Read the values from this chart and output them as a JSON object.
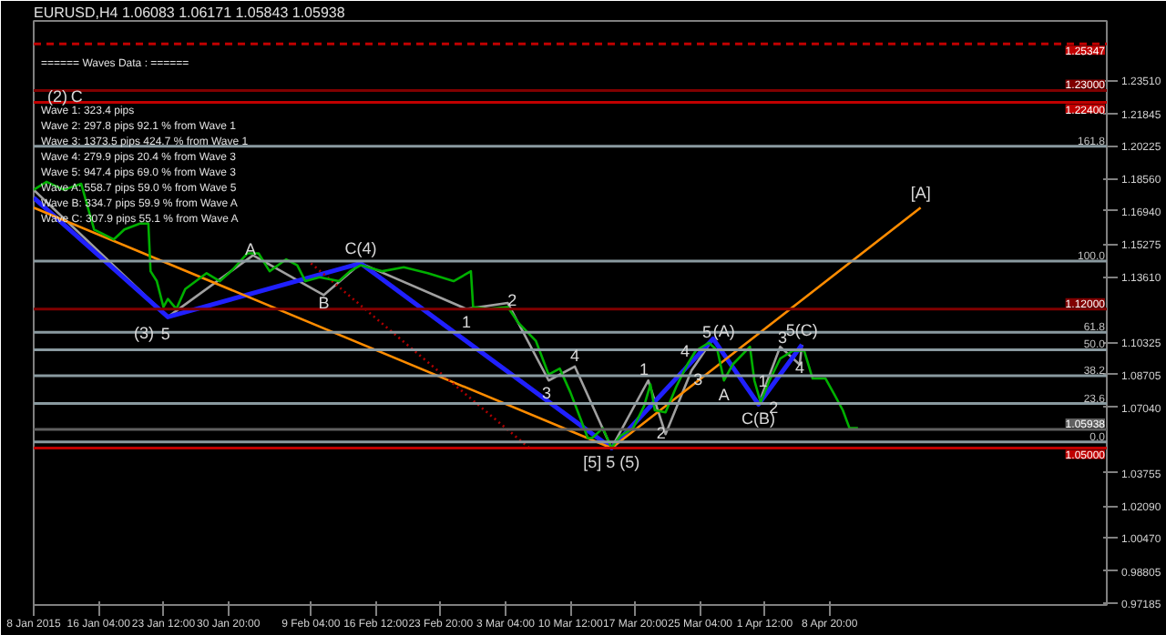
{
  "chart_data": {
    "type": "line",
    "title": "EURUSD,H4 1.06083 1.06171 1.05843 1.05938",
    "xlim": [
      "2015-01-08T20:00",
      "2015-05-10T03:00"
    ],
    "ylim": [
      0.971,
      1.265
    ],
    "xticks": [
      {
        "value": "2015-01-08T20:00",
        "label": "8 Jan 2015"
      },
      {
        "value": "2015-01-16T04:00",
        "label": "16 Jan 04:00"
      },
      {
        "value": "2015-01-23T12:00",
        "label": "23 Jan 12:00"
      },
      {
        "value": "2015-01-30T20:00",
        "label": "30 Jan 20:00"
      },
      {
        "value": "2015-02-09T04:00",
        "label": "9 Feb 04:00"
      },
      {
        "value": "2015-02-16T12:00",
        "label": "16 Feb 12:00"
      },
      {
        "value": "2015-02-23T20:00",
        "label": "23 Feb 20:00"
      },
      {
        "value": "2015-03-03T04:00",
        "label": "3 Mar 04:00"
      },
      {
        "value": "2015-03-10T12:00",
        "label": "10 Mar 12:00"
      },
      {
        "value": "2015-03-17T20:00",
        "label": "17 Mar 20:00"
      },
      {
        "value": "2015-03-25T04:00",
        "label": "25 Mar 04:00"
      },
      {
        "value": "2015-04-01T12:00",
        "label": "1 Apr 12:00"
      },
      {
        "value": "2015-04-08T20:00",
        "label": "8 Apr 20:00"
      }
    ],
    "yticks": [
      {
        "value": 1.2351,
        "label": "1.23510"
      },
      {
        "value": 1.21845,
        "label": "1.21845"
      },
      {
        "value": 1.20225,
        "label": "1.20225"
      },
      {
        "value": 1.1856,
        "label": "1.18560"
      },
      {
        "value": 1.1694,
        "label": "1.16940"
      },
      {
        "value": 1.15275,
        "label": "1.15275"
      },
      {
        "value": 1.1361,
        "label": "1.13610"
      },
      {
        "value": 1.10325,
        "label": "1.10325"
      },
      {
        "value": 1.08705,
        "label": "1.08705"
      },
      {
        "value": 1.0704,
        "label": "1.07040"
      },
      {
        "value": 1.03755,
        "label": "1.03755"
      },
      {
        "value": 1.0209,
        "label": "1.02090"
      },
      {
        "value": 1.0047,
        "label": "1.00470"
      },
      {
        "value": 0.98805,
        "label": "0.98805"
      },
      {
        "value": 0.97185,
        "label": "0.97185"
      }
    ],
    "marker": "none",
    "line_style": "solid",
    "series": [
      {
        "color": "#00b000",
        "x": [
          "2015-01-08T20:00",
          "2015-01-10T07:00",
          "2015-01-12T06:00",
          "2015-01-14T05:00",
          "2015-01-14T23:00",
          "2015-01-15T16:00",
          "2015-01-17T21:00",
          "2015-01-19T02:00",
          "2015-01-20T20:00",
          "2015-01-21T19:00",
          "2015-01-22T01:00",
          "2015-01-22T18:00",
          "2015-01-23T12:00",
          "2015-01-24T00:00",
          "2015-01-24T23:00",
          "2015-01-25T23:00",
          "2015-01-27T04:00",
          "2015-01-28T09:00",
          "2015-01-29T21:00",
          "2015-01-31T03:30",
          "2015-02-02T00:00",
          "2015-02-03T06:00",
          "2015-02-04T12:00",
          "2015-02-06T09:00",
          "2015-02-07T15:00",
          "2015-02-08T13:00",
          "2015-02-10T03:30",
          "2015-02-12T08:00",
          "2015-02-13T14:00",
          "2015-02-14T19:00",
          "2015-02-17T06:00",
          "2015-02-19T16:00",
          "2015-02-22T09:00",
          "2015-02-25T07:00",
          "2015-02-27T06:00",
          "2015-02-27T12:00",
          "2015-03-01T05:00",
          "2015-03-03T10:00",
          "2015-03-04T15:00",
          "2015-03-06T14:00",
          "2015-03-08T01:00",
          "2015-03-09T07:00",
          "2015-03-10T12:00",
          "2015-03-11T17:00",
          "2015-03-12T11:00",
          "2015-03-12T23:00",
          "2015-03-14T04:00",
          "2015-03-15T03:30",
          "2015-03-16T03:00",
          "2015-03-17T14:00",
          "2015-03-18T19:30",
          "2015-03-19T13:00",
          "2015-03-20T01:00",
          "2015-03-21T06:00",
          "2015-03-22T11:30",
          "2015-03-23T17:00",
          "2015-03-24T16:00",
          "2015-03-26T03:30",
          "2015-03-27T03:00",
          "2015-03-27T20:30",
          "2015-03-28T20:00",
          "2015-03-30T19:00",
          "2015-03-31T07:00",
          "2015-04-01T00:00",
          "2015-04-02T00:00",
          "2015-04-03T05:00",
          "2015-04-04T16:00",
          "2015-04-05T22:00",
          "2015-04-06T21:00",
          "2015-04-08T08:00",
          "2015-04-09T08:00",
          "2015-04-10T07:00",
          "2015-04-11T01:00",
          "2015-04-12T00:00"
        ],
        "values": [
          1.18,
          1.184,
          1.18,
          1.183,
          1.171,
          1.16,
          1.155,
          1.16,
          1.163,
          1.163,
          1.139,
          1.134,
          1.121,
          1.125,
          1.12,
          1.13,
          1.134,
          1.138,
          1.134,
          1.139,
          1.148,
          1.148,
          1.139,
          1.145,
          1.142,
          1.134,
          1.136,
          1.134,
          1.139,
          1.142,
          1.139,
          1.141,
          1.138,
          1.134,
          1.139,
          1.121,
          1.12,
          1.121,
          1.113,
          1.104,
          1.087,
          1.09,
          1.078,
          1.064,
          1.055,
          1.055,
          1.06,
          1.05,
          1.056,
          1.06,
          1.071,
          1.082,
          1.069,
          1.068,
          1.081,
          1.092,
          1.099,
          1.103,
          1.099,
          1.084,
          1.092,
          1.101,
          1.084,
          1.073,
          1.084,
          1.095,
          1.099,
          1.099,
          1.085,
          1.085,
          1.077,
          1.069,
          1.06,
          1.06
        ]
      },
      {
        "color": "#a0a0a0",
        "x": [
          "2015-01-08T20:00",
          "2015-01-24T00:00",
          "2015-02-02T15:00",
          "2015-02-10T15:00",
          "2015-02-14T19:00",
          "2015-02-26T18:00",
          "2015-03-03T10:00",
          "2015-03-08T01:00",
          "2015-03-11T00:00",
          "2015-03-15T03:30",
          "2015-03-19T07:00",
          "2015-03-21T06:00",
          "2015-03-24T04:30",
          "2015-03-26T15:00",
          "2015-03-29T08:00",
          "2015-03-31T18:00",
          "2015-04-03T05:00",
          "2015-04-05T10:00",
          "2015-04-05T16:00"
        ],
        "values": [
          1.18,
          1.116,
          1.147,
          1.127,
          1.143,
          1.12,
          1.123,
          1.084,
          1.091,
          1.05,
          1.084,
          1.057,
          1.089,
          1.105,
          1.088,
          1.072,
          1.101,
          1.092,
          1.102
        ]
      },
      {
        "color": "#2020ff",
        "x": [
          "2015-01-08T20:00",
          "2015-01-24T00:00",
          "2015-02-14T19:00",
          "2015-03-15T03:30",
          "2015-03-26T15:00",
          "2015-03-31T18:00",
          "2015-04-05T16:00"
        ],
        "values": [
          1.176,
          1.116,
          1.143,
          1.05,
          1.105,
          1.072,
          1.102
        ]
      },
      {
        "color": "#ff8c00",
        "x": [
          "2015-01-08T20:00",
          "2015-03-15T03:30",
          "2015-04-19T02:00"
        ],
        "values": [
          1.171,
          1.05,
          1.171
        ]
      },
      {
        "color": "#b00000",
        "line_style": "dotted",
        "x": [
          "2015-02-09T04:00",
          "2015-03-05T20:30"
        ],
        "values": [
          1.143,
          1.05
        ]
      }
    ],
    "ref_lines": [
      {
        "axis": "y",
        "value": 1.25347,
        "label": "1.25347",
        "color": "#c00000",
        "line_style": "dashed"
      },
      {
        "axis": "y",
        "value": 1.23,
        "label": "1.23000",
        "color": "#800000"
      },
      {
        "axis": "y",
        "value": 1.224,
        "label": "1.22400",
        "color": "#c00000"
      },
      {
        "axis": "y",
        "value": 1.12,
        "label": "1.12000",
        "color": "#800000"
      },
      {
        "axis": "y",
        "value": 1.05,
        "label": "1.05000",
        "color": "#c00000"
      },
      {
        "axis": "y",
        "value": 1.05938,
        "label": "1.05938",
        "color": "#606060"
      },
      {
        "axis": "y",
        "value": 1.2019,
        "color": "#8a9aa0"
      },
      {
        "axis": "y",
        "value": 1.1441,
        "color": "#8a9aa0"
      },
      {
        "axis": "y",
        "value": 1.1083,
        "color": "#8a9aa0"
      },
      {
        "axis": "y",
        "value": 1.0995,
        "color": "#8a9aa0"
      },
      {
        "axis": "y",
        "value": 1.0864,
        "color": "#8a9aa0"
      },
      {
        "axis": "y",
        "value": 1.0724,
        "color": "#8a9aa0"
      },
      {
        "axis": "y",
        "value": 1.0531,
        "color": "#8a9aa0"
      }
    ],
    "annotations": [
      "====== Waves Data : ======",
      "Wave 1: 323.4 pips",
      "Wave 2: 297.8 pips 92.1 % from Wave 1",
      "Wave 3: 1373.5 pips 424.7 % from Wave 1",
      "Wave 4: 279.9 pips 20.4 % from Wave 3",
      "Wave 5: 947.4 pips 69.0 % from Wave 3",
      "Wave A: 558.7 pips 59.0 % from Wave 5",
      "Wave B: 334.7 pips 59.9 % from Wave A",
      "Wave C: 307.9 pips 55.1 % from Wave A",
      {
        "text": "161.8",
        "x": "2015-05-10T03:00",
        "y": 1.2019
      },
      {
        "text": "100.0",
        "x": "2015-05-10T03:00",
        "y": 1.1441
      },
      {
        "text": "61.8",
        "x": "2015-05-10T03:00",
        "y": 1.1083
      },
      {
        "text": "50.0",
        "x": "2015-05-10T03:00",
        "y": 1.0995
      },
      {
        "text": "38.2",
        "x": "2015-05-10T03:00",
        "y": 1.0864
      },
      {
        "text": "23.6",
        "x": "2015-05-10T03:00",
        "y": 1.0724
      },
      {
        "text": "0.0",
        "x": "2015-05-10T03:00",
        "y": 1.0531
      },
      {
        "text": "(2)",
        "x": "2015-01-11T12:30",
        "y": 1.227
      },
      {
        "text": "C",
        "x": "2015-01-13T17:00",
        "y": 1.227
      },
      {
        "text": "(3)",
        "x": "2015-01-21T07:00",
        "y": 1.108
      },
      {
        "text": "5",
        "x": "2015-01-23T18:00",
        "y": 1.108
      },
      {
        "text": "A",
        "x": "2015-02-02T08:00",
        "y": 1.15
      },
      {
        "text": "B",
        "x": "2015-02-10T15:00",
        "y": 1.123
      },
      {
        "text": "C(4)",
        "x": "2015-02-14T19:00",
        "y": 1.143
      },
      {
        "text": "1",
        "x": "2015-02-26T18:00",
        "y": 1.12
      },
      {
        "text": "2",
        "x": "2015-03-03T22:00",
        "y": 1.125
      },
      {
        "text": "3",
        "x": "2015-03-07T19:30",
        "y": 1.078
      },
      {
        "text": "4",
        "x": "2015-03-11T00:00",
        "y": 1.097
      },
      {
        "text": "[5] 5 (5)",
        "x": "2015-03-15T03:30",
        "y": 1.05
      },
      {
        "text": "1",
        "x": "2015-03-18T19:30",
        "y": 1.09
      },
      {
        "text": "2",
        "x": "2015-03-20T18:00",
        "y": 1.058
      },
      {
        "text": "4",
        "x": "2015-03-23T11:00",
        "y": 1.099
      },
      {
        "text": "3",
        "x": "2015-03-24T22:00",
        "y": 1.085
      },
      {
        "text": "5",
        "x": "2015-03-25T22:00",
        "y": 1.109
      },
      {
        "text": "(A)",
        "x": "2015-03-27T20:30",
        "y": 1.109
      },
      {
        "text": "A",
        "x": "2015-03-27T20:30",
        "y": 1.084
      },
      {
        "text": "C(B)",
        "x": "2015-03-31T18:00",
        "y": 1.072
      },
      {
        "text": "1",
        "x": "2015-04-01T06:00",
        "y": 1.084
      },
      {
        "text": "2",
        "x": "2015-04-02T11:30",
        "y": 1.071
      },
      {
        "text": "3",
        "x": "2015-04-03T11:00",
        "y": 1.106
      },
      {
        "text": "4",
        "x": "2015-04-05T10:00",
        "y": 1.091
      },
      {
        "text": "5(C)",
        "x": "2015-04-05T16:00",
        "y": 1.102
      },
      {
        "text": "[A]",
        "x": "2015-04-19T02:00",
        "y": 1.171
      }
    ]
  }
}
